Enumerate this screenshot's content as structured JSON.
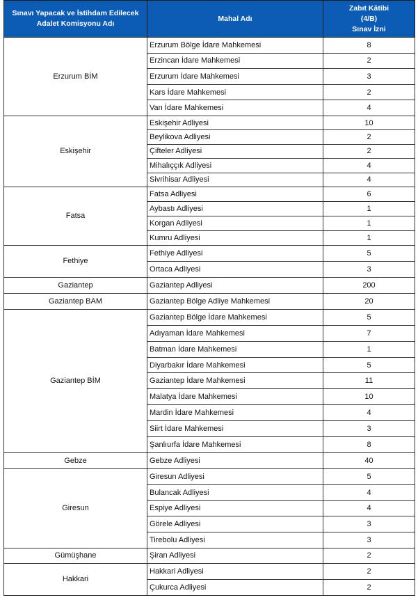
{
  "header": {
    "col1": [
      "Sınavı Yapacak ve İstihdam Edilecek",
      "Adalet Komisyonu Adı"
    ],
    "col2": "Mahal Adı",
    "col3": [
      "Zabıt Kâtibi",
      "(4/B)",
      "Sınav İzni"
    ]
  },
  "header_color": "#0c5bb5",
  "groups": [
    {
      "name": "Erzurum BİM",
      "rows": [
        [
          "Erzurum Bölge İdare Mahkemesi",
          "8"
        ],
        [
          "Erzincan İdare Mahkemesi",
          "2"
        ],
        [
          "Erzurum İdare Mahkemesi",
          "3"
        ],
        [
          "Kars İdare Mahkemesi",
          "2"
        ],
        [
          "Van İdare Mahkemesi",
          "4"
        ]
      ]
    },
    {
      "name": "Eskişehir",
      "rows": [
        [
          "Eskişehir Adliyesi",
          "10"
        ],
        [
          "Beylikova Adliyesi",
          "2"
        ],
        [
          "Çifteler Adliyesi",
          "2"
        ],
        [
          "Mihalıççık Adliyesi",
          "4"
        ],
        [
          "Sivrihisar Adliyesi",
          "4"
        ]
      ]
    },
    {
      "name": "Fatsa",
      "rows": [
        [
          "Fatsa Adliyesi",
          "6"
        ],
        [
          "Aybastı Adliyesi",
          "1"
        ],
        [
          "Korgan Adliyesi",
          "1"
        ],
        [
          "Kumru Adliyesi",
          "1"
        ]
      ]
    },
    {
      "name": "Fethiye",
      "rows": [
        [
          "Fethiye Adliyesi",
          "5"
        ],
        [
          "Ortaca Adliyesi",
          "3"
        ]
      ]
    },
    {
      "name": "Gaziantep",
      "rows": [
        [
          "Gaziantep Adliyesi",
          "200"
        ]
      ]
    },
    {
      "name": "Gaziantep BAM",
      "rows": [
        [
          "Gaziantep Bölge Adliye Mahkemesi",
          "20"
        ]
      ]
    },
    {
      "name": "Gaziantep BİM",
      "rows": [
        [
          "Gaziantep Bölge İdare Mahkemesi",
          "5"
        ],
        [
          "Adıyaman İdare Mahkemesi",
          "7"
        ],
        [
          "Batman İdare Mahkemesi",
          "1"
        ],
        [
          "Diyarbakır İdare Mahkemesi",
          "5"
        ],
        [
          "Gaziantep İdare Mahkemesi",
          "11"
        ],
        [
          "Malatya İdare Mahkemesi",
          "10"
        ],
        [
          "Mardin İdare Mahkemesi",
          "4"
        ],
        [
          "Siirt İdare Mahkemesi",
          "3"
        ],
        [
          "Şanlıurfa İdare Mahkemesi",
          "8"
        ]
      ]
    },
    {
      "name": "Gebze",
      "rows": [
        [
          "Gebze Adliyesi",
          "40"
        ]
      ]
    },
    {
      "name": "Giresun",
      "rows": [
        [
          "Giresun Adliyesi",
          "5"
        ],
        [
          "Bulancak Adliyesi",
          "4"
        ],
        [
          "Espiye Adliyesi",
          "4"
        ],
        [
          "Görele Adliyesi",
          "3"
        ],
        [
          "Tirebolu Adliyesi",
          "3"
        ]
      ]
    },
    {
      "name": "Gümüşhane",
      "rows": [
        [
          "Şiran Adliyesi",
          "2"
        ]
      ]
    },
    {
      "name": "Hakkari",
      "rows": [
        [
          "Hakkari Adliyesi",
          "2"
        ],
        [
          "Çukurca Adliyesi",
          "2"
        ]
      ]
    }
  ]
}
